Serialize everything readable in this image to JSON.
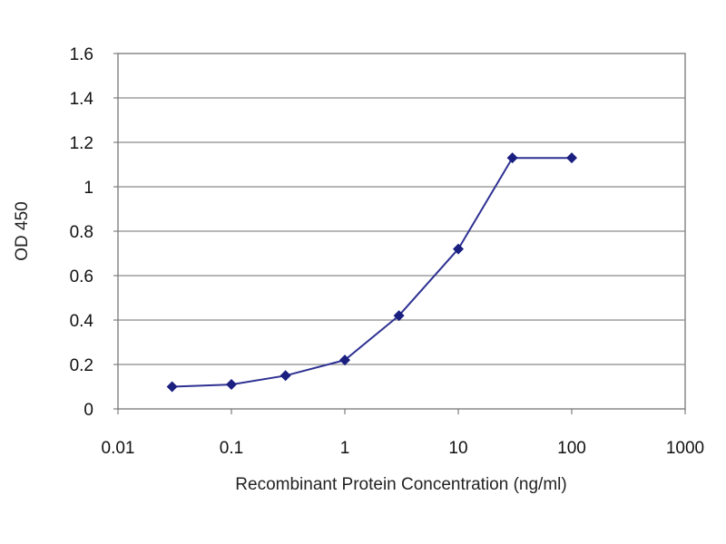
{
  "chart_data": {
    "type": "line",
    "title": "",
    "xlabel": "Recombinant Protein Concentration (ng/ml)",
    "ylabel": "OD 450",
    "x_scale": "log",
    "xlim": [
      0.01,
      1000
    ],
    "ylim": [
      0,
      1.6
    ],
    "x_ticks": [
      0.01,
      0.1,
      1,
      10,
      100,
      1000
    ],
    "x_tick_labels": [
      "0.01",
      "0.1",
      "1",
      "10",
      "100",
      "1000"
    ],
    "y_ticks": [
      0,
      0.2,
      0.4,
      0.6,
      0.8,
      1,
      1.2,
      1.4,
      1.6
    ],
    "y_tick_labels": [
      "0",
      "0.2",
      "0.4",
      "0.6",
      "0.8",
      "1",
      "1.2",
      "1.4",
      "1.6"
    ],
    "grid": "horizontal",
    "legend": "none",
    "series": [
      {
        "x": [
          0.03,
          0.1,
          0.3,
          1,
          3,
          10,
          30,
          100
        ],
        "y": [
          0.1,
          0.11,
          0.15,
          0.22,
          0.42,
          0.72,
          1.13,
          1.13
        ],
        "color": "#2e3192",
        "marker": "diamond",
        "marker_color": "#1a1f80"
      }
    ]
  }
}
